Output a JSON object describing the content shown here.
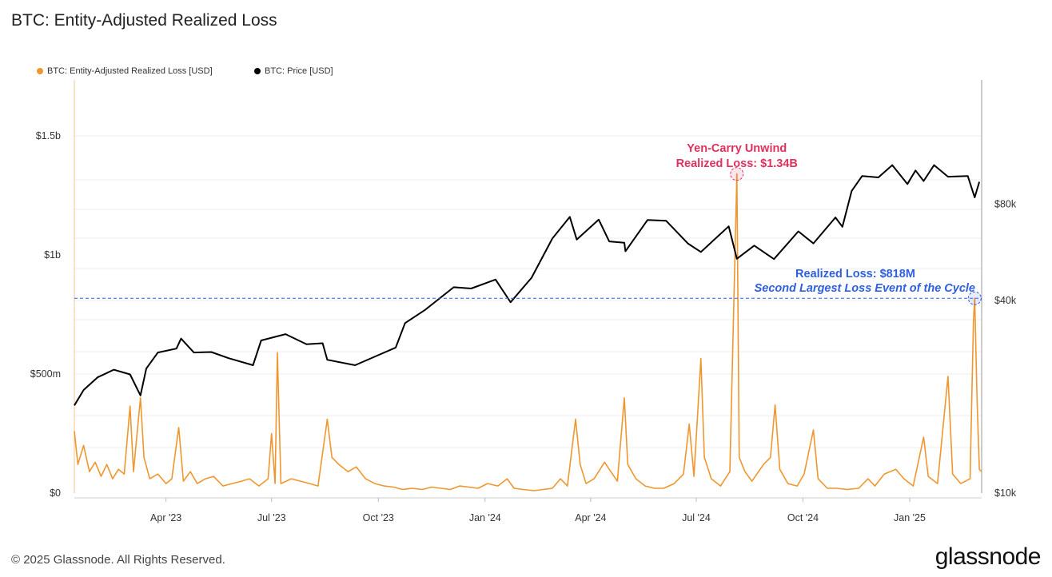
{
  "title": "BTC: Entity-Adjusted Realized Loss",
  "footer": "© 2025 Glassnode. All Rights Reserved.",
  "logo": "glassnode",
  "chart_data": {
    "type": "line",
    "title": "BTC: Entity-Adjusted Realized Loss",
    "legend_position": "top-left",
    "grid": true,
    "xlim": [
      "2023-01-12",
      "2025-03-04"
    ],
    "x_ticks": [
      {
        "date": "2023-04-01",
        "label": "Apr '23"
      },
      {
        "date": "2023-07-01",
        "label": "Jul '23"
      },
      {
        "date": "2023-10-01",
        "label": "Oct '23"
      },
      {
        "date": "2024-01-01",
        "label": "Jan '24"
      },
      {
        "date": "2024-04-01",
        "label": "Apr '24"
      },
      {
        "date": "2024-07-01",
        "label": "Jul '24"
      },
      {
        "date": "2024-10-01",
        "label": "Oct '24"
      },
      {
        "date": "2025-01-01",
        "label": "Jan '25"
      }
    ],
    "y_left": {
      "unit": "USD millions",
      "ylim": [
        0,
        1750
      ],
      "ticks": [
        {
          "v": 0,
          "label": "$0"
        },
        {
          "v": 500,
          "label": "$500m"
        },
        {
          "v": 1000,
          "label": "$1b"
        },
        {
          "v": 1500,
          "label": "$1.5b"
        }
      ]
    },
    "y_right": {
      "scale": "log",
      "unit": "USD",
      "ticks": [
        {
          "v": 10000,
          "label": "$10k"
        },
        {
          "v": 40000,
          "label": "$40k"
        },
        {
          "v": 80000,
          "label": "$80k"
        }
      ]
    },
    "series": [
      {
        "name": "BTC: Entity-Adjusted Realized Loss [USD]",
        "color": "#f0962e",
        "axis": "left",
        "points": [
          [
            "2023-01-12",
            260
          ],
          [
            "2023-01-15",
            120
          ],
          [
            "2023-01-20",
            200
          ],
          [
            "2023-01-25",
            90
          ],
          [
            "2023-01-30",
            130
          ],
          [
            "2023-02-04",
            70
          ],
          [
            "2023-02-09",
            120
          ],
          [
            "2023-02-14",
            60
          ],
          [
            "2023-02-19",
            100
          ],
          [
            "2023-02-24",
            80
          ],
          [
            "2023-03-01",
            365
          ],
          [
            "2023-03-04",
            90
          ],
          [
            "2023-03-10",
            400
          ],
          [
            "2023-03-13",
            150
          ],
          [
            "2023-03-18",
            60
          ],
          [
            "2023-03-25",
            80
          ],
          [
            "2023-04-01",
            40
          ],
          [
            "2023-04-06",
            60
          ],
          [
            "2023-04-12",
            275
          ],
          [
            "2023-04-16",
            50
          ],
          [
            "2023-04-22",
            90
          ],
          [
            "2023-04-28",
            40
          ],
          [
            "2023-05-05",
            60
          ],
          [
            "2023-05-12",
            70
          ],
          [
            "2023-05-20",
            30
          ],
          [
            "2023-05-28",
            40
          ],
          [
            "2023-06-05",
            50
          ],
          [
            "2023-06-12",
            60
          ],
          [
            "2023-06-20",
            30
          ],
          [
            "2023-06-28",
            60
          ],
          [
            "2023-07-01",
            250
          ],
          [
            "2023-07-04",
            40
          ],
          [
            "2023-07-06",
            590
          ],
          [
            "2023-07-09",
            40
          ],
          [
            "2023-07-18",
            60
          ],
          [
            "2023-07-26",
            50
          ],
          [
            "2023-08-03",
            40
          ],
          [
            "2023-08-10",
            30
          ],
          [
            "2023-08-18",
            310
          ],
          [
            "2023-08-22",
            150
          ],
          [
            "2023-08-28",
            120
          ],
          [
            "2023-09-05",
            90
          ],
          [
            "2023-09-12",
            110
          ],
          [
            "2023-09-20",
            60
          ],
          [
            "2023-09-28",
            40
          ],
          [
            "2023-10-06",
            30
          ],
          [
            "2023-10-14",
            25
          ],
          [
            "2023-10-22",
            15
          ],
          [
            "2023-10-30",
            20
          ],
          [
            "2023-11-08",
            15
          ],
          [
            "2023-11-16",
            25
          ],
          [
            "2023-11-24",
            20
          ],
          [
            "2023-12-02",
            15
          ],
          [
            "2023-12-10",
            30
          ],
          [
            "2023-12-18",
            25
          ],
          [
            "2023-12-26",
            20
          ],
          [
            "2024-01-03",
            40
          ],
          [
            "2024-01-12",
            30
          ],
          [
            "2024-01-20",
            60
          ],
          [
            "2024-01-26",
            20
          ],
          [
            "2024-02-03",
            15
          ],
          [
            "2024-02-12",
            10
          ],
          [
            "2024-02-20",
            15
          ],
          [
            "2024-02-28",
            20
          ],
          [
            "2024-03-06",
            60
          ],
          [
            "2024-03-12",
            30
          ],
          [
            "2024-03-19",
            310
          ],
          [
            "2024-03-23",
            120
          ],
          [
            "2024-03-28",
            40
          ],
          [
            "2024-04-04",
            60
          ],
          [
            "2024-04-13",
            130
          ],
          [
            "2024-04-17",
            100
          ],
          [
            "2024-04-24",
            50
          ],
          [
            "2024-04-30",
            400
          ],
          [
            "2024-05-03",
            120
          ],
          [
            "2024-05-10",
            60
          ],
          [
            "2024-05-18",
            30
          ],
          [
            "2024-05-26",
            20
          ],
          [
            "2024-06-03",
            20
          ],
          [
            "2024-06-12",
            40
          ],
          [
            "2024-06-20",
            80
          ],
          [
            "2024-06-25",
            290
          ],
          [
            "2024-06-29",
            70
          ],
          [
            "2024-07-05",
            565
          ],
          [
            "2024-07-08",
            150
          ],
          [
            "2024-07-14",
            60
          ],
          [
            "2024-07-22",
            30
          ],
          [
            "2024-07-30",
            90
          ],
          [
            "2024-08-05",
            1340
          ],
          [
            "2024-08-07",
            150
          ],
          [
            "2024-08-12",
            90
          ],
          [
            "2024-08-18",
            50
          ],
          [
            "2024-08-28",
            120
          ],
          [
            "2024-09-03",
            150
          ],
          [
            "2024-09-07",
            370
          ],
          [
            "2024-09-11",
            100
          ],
          [
            "2024-09-18",
            40
          ],
          [
            "2024-09-26",
            30
          ],
          [
            "2024-10-02",
            80
          ],
          [
            "2024-10-10",
            265
          ],
          [
            "2024-10-14",
            60
          ],
          [
            "2024-10-22",
            20
          ],
          [
            "2024-10-30",
            20
          ],
          [
            "2024-11-08",
            15
          ],
          [
            "2024-11-18",
            20
          ],
          [
            "2024-11-26",
            60
          ],
          [
            "2024-12-02",
            30
          ],
          [
            "2024-12-10",
            80
          ],
          [
            "2024-12-20",
            100
          ],
          [
            "2024-12-27",
            60
          ],
          [
            "2025-01-04",
            30
          ],
          [
            "2025-01-13",
            235
          ],
          [
            "2025-01-17",
            70
          ],
          [
            "2025-01-25",
            40
          ],
          [
            "2025-02-03",
            490
          ],
          [
            "2025-02-07",
            80
          ],
          [
            "2025-02-14",
            40
          ],
          [
            "2025-02-22",
            60
          ],
          [
            "2025-02-25",
            730
          ],
          [
            "2025-02-26",
            818
          ],
          [
            "2025-02-28",
            400
          ],
          [
            "2025-03-02",
            100
          ],
          [
            "2025-03-04",
            90
          ]
        ]
      },
      {
        "name": "BTC: Price [USD]",
        "color": "#000000",
        "axis": "right",
        "points": [
          [
            "2023-01-12",
            18800
          ],
          [
            "2023-01-20",
            21000
          ],
          [
            "2023-02-01",
            23000
          ],
          [
            "2023-02-15",
            24300
          ],
          [
            "2023-03-01",
            23500
          ],
          [
            "2023-03-10",
            20200
          ],
          [
            "2023-03-15",
            24500
          ],
          [
            "2023-03-25",
            27500
          ],
          [
            "2023-04-10",
            28300
          ],
          [
            "2023-04-14",
            30400
          ],
          [
            "2023-04-25",
            27500
          ],
          [
            "2023-05-10",
            27600
          ],
          [
            "2023-05-25",
            26400
          ],
          [
            "2023-06-15",
            25100
          ],
          [
            "2023-06-22",
            30000
          ],
          [
            "2023-07-13",
            31400
          ],
          [
            "2023-07-31",
            29200
          ],
          [
            "2023-08-14",
            29400
          ],
          [
            "2023-08-18",
            26100
          ],
          [
            "2023-09-11",
            25100
          ],
          [
            "2023-09-30",
            26900
          ],
          [
            "2023-10-16",
            28500
          ],
          [
            "2023-10-24",
            34000
          ],
          [
            "2023-11-10",
            37300
          ],
          [
            "2023-12-05",
            44000
          ],
          [
            "2023-12-20",
            43600
          ],
          [
            "2024-01-10",
            46500
          ],
          [
            "2024-01-23",
            39500
          ],
          [
            "2024-02-10",
            47100
          ],
          [
            "2024-02-28",
            62500
          ],
          [
            "2024-03-14",
            73000
          ],
          [
            "2024-03-20",
            62000
          ],
          [
            "2024-04-08",
            71600
          ],
          [
            "2024-04-17",
            61200
          ],
          [
            "2024-04-30",
            60600
          ],
          [
            "2024-05-01",
            57000
          ],
          [
            "2024-05-20",
            71400
          ],
          [
            "2024-06-05",
            71000
          ],
          [
            "2024-06-24",
            60200
          ],
          [
            "2024-07-05",
            56700
          ],
          [
            "2024-07-29",
            68200
          ],
          [
            "2024-08-05",
            54000
          ],
          [
            "2024-08-20",
            59400
          ],
          [
            "2024-09-06",
            53900
          ],
          [
            "2024-09-27",
            65800
          ],
          [
            "2024-10-10",
            60300
          ],
          [
            "2024-10-29",
            72700
          ],
          [
            "2024-11-04",
            68000
          ],
          [
            "2024-11-12",
            88000
          ],
          [
            "2024-11-21",
            98000
          ],
          [
            "2024-12-05",
            97000
          ],
          [
            "2024-12-17",
            106000
          ],
          [
            "2024-12-30",
            92500
          ],
          [
            "2025-01-06",
            102000
          ],
          [
            "2025-01-13",
            94500
          ],
          [
            "2025-01-22",
            106000
          ],
          [
            "2025-02-03",
            97500
          ],
          [
            "2025-02-20",
            98000
          ],
          [
            "2025-02-26",
            84000
          ],
          [
            "2025-03-02",
            94000
          ]
        ]
      }
    ],
    "annotations": [
      {
        "lines": [
          "Yen-Carry Unwind",
          "Realized Loss: $1.34B"
        ],
        "date": "2024-08-05",
        "value": 1340,
        "color": "#e0305c"
      },
      {
        "lines": [
          "Realized Loss: $818M",
          "Second Largest Loss Event of the Cycle"
        ],
        "date": "2025-02-26",
        "value": 818,
        "color": "#2f5fe0",
        "reference_line": 818
      }
    ]
  }
}
